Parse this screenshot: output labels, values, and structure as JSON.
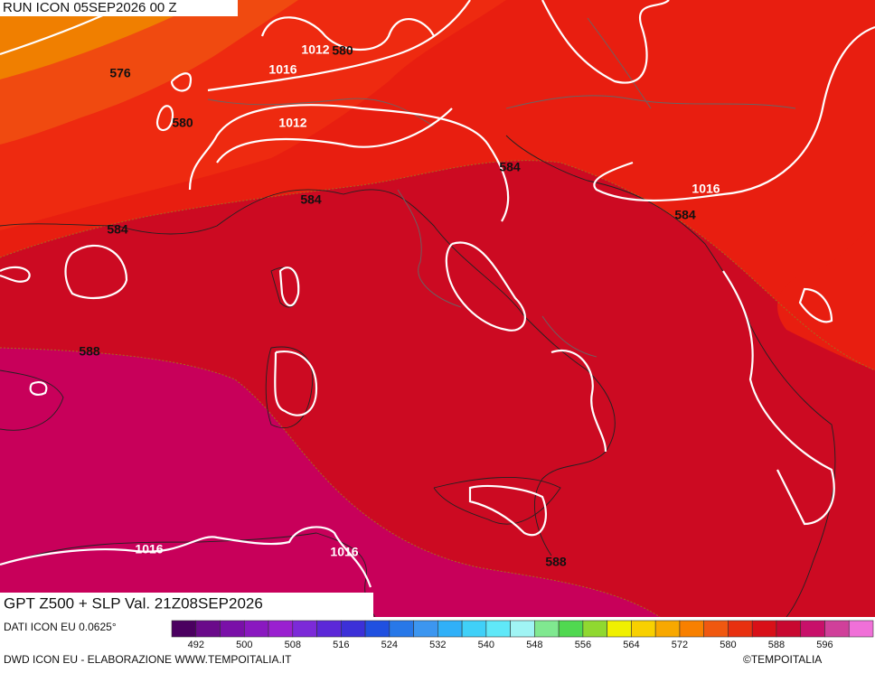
{
  "header": {
    "title": "RUN ICON 05SEP2026 00 Z"
  },
  "map": {
    "subtitle": "GPT Z500 + SLP Val. 21Z08SEP2026",
    "contour_labels": [
      "576",
      "580",
      "1016",
      "1012",
      "580",
      "1012",
      "584",
      "584",
      "1016",
      "584",
      "584",
      "588",
      "1016",
      "1016",
      "588"
    ]
  },
  "colorbar": {
    "colors": [
      "#4b0060",
      "#6a0a8a",
      "#7a10a8",
      "#8a18c0",
      "#9a20d0",
      "#7c2ad8",
      "#5c28d8",
      "#3c30d8",
      "#2050e0",
      "#2878e8",
      "#3c96f0",
      "#30b0f8",
      "#40d0f8",
      "#60e8f8",
      "#a0f4f4",
      "#80e890",
      "#50d850",
      "#90d830",
      "#f0f000",
      "#f8d000",
      "#f8a800",
      "#f88000",
      "#f05810",
      "#e83010",
      "#d81018",
      "#c80830",
      "#c8106a",
      "#d0409a",
      "#f070d8"
    ],
    "labels": [
      "492",
      "500",
      "508",
      "516",
      "524",
      "532",
      "540",
      "548",
      "556",
      "564",
      "572",
      "580",
      "588",
      "596"
    ]
  },
  "footer": {
    "source": "DATI ICON EU 0.0625°",
    "credit": "DWD ICON EU - ELABORAZIONE WWW.TEMPOITALIA.IT",
    "copyright": "©TEMPOITALIA"
  }
}
